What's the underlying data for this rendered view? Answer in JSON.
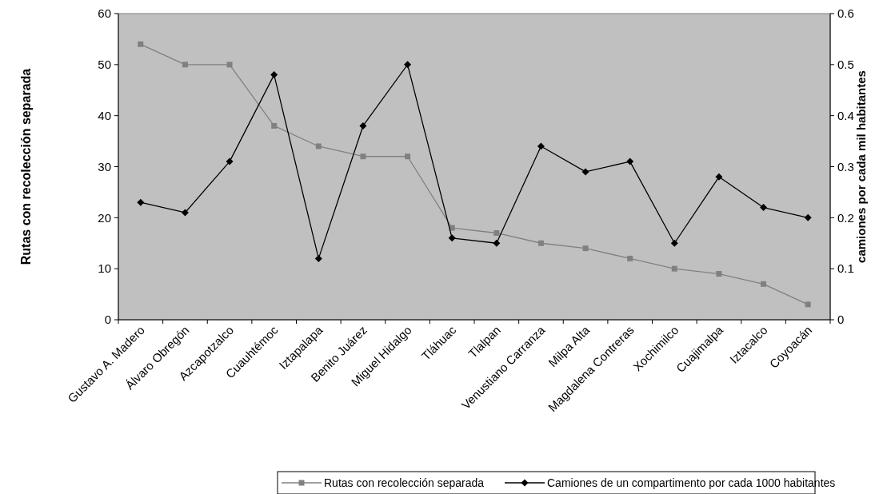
{
  "chart_data": {
    "type": "line",
    "ylabel": "Rutas con recolección separada",
    "y2label": "camiones por cada mil habitantes",
    "categories": [
      "Gustavo A. Madero",
      "Álvaro Obregón",
      "Azcapotzalco",
      "Cuauhtémoc",
      "Iztapalapa",
      "Benito Juárez",
      "Miguel Hidalgo",
      "Tláhuac",
      "Tlalpan",
      "Venustiano Carranza",
      "Milpa Alta",
      "Magdalena Contreras",
      "Xochimilco",
      "Cuajimalpa",
      "Iztacalco",
      "Coyoacán"
    ],
    "series": [
      {
        "name": "Rutas con recolección separada",
        "color": "#808080",
        "marker": "square",
        "values": [
          54,
          50,
          50,
          38,
          34,
          32,
          32,
          18,
          17,
          15,
          14,
          12,
          10,
          9,
          7,
          3
        ]
      },
      {
        "name": "Camiones de un compartimento por cada 1000 habitantes",
        "color": "#000000",
        "marker": "diamond",
        "axis": "y2",
        "values": [
          0.23,
          0.21,
          0.31,
          0.48,
          0.12,
          0.38,
          0.5,
          0.16,
          0.15,
          0.34,
          0.29,
          0.31,
          0.15,
          0.28,
          0.22,
          0.2
        ]
      }
    ],
    "ylim": [
      0,
      60
    ],
    "yticks": [
      0,
      10,
      20,
      30,
      40,
      50,
      60
    ],
    "y2lim": [
      0,
      0.6
    ],
    "y2ticks": [
      0,
      {
        "value": 0.1,
        "label": "0.1"
      },
      {
        "value": 0.2,
        "label": "0.2"
      },
      {
        "value": 0.3,
        "label": "0.3"
      },
      {
        "value": 0.4,
        "label": "0.4"
      },
      {
        "value": 0.5,
        "label": "0.5"
      },
      {
        "value": 0.6,
        "label": "0.6"
      }
    ],
    "grid": false,
    "legend": "bottom"
  }
}
